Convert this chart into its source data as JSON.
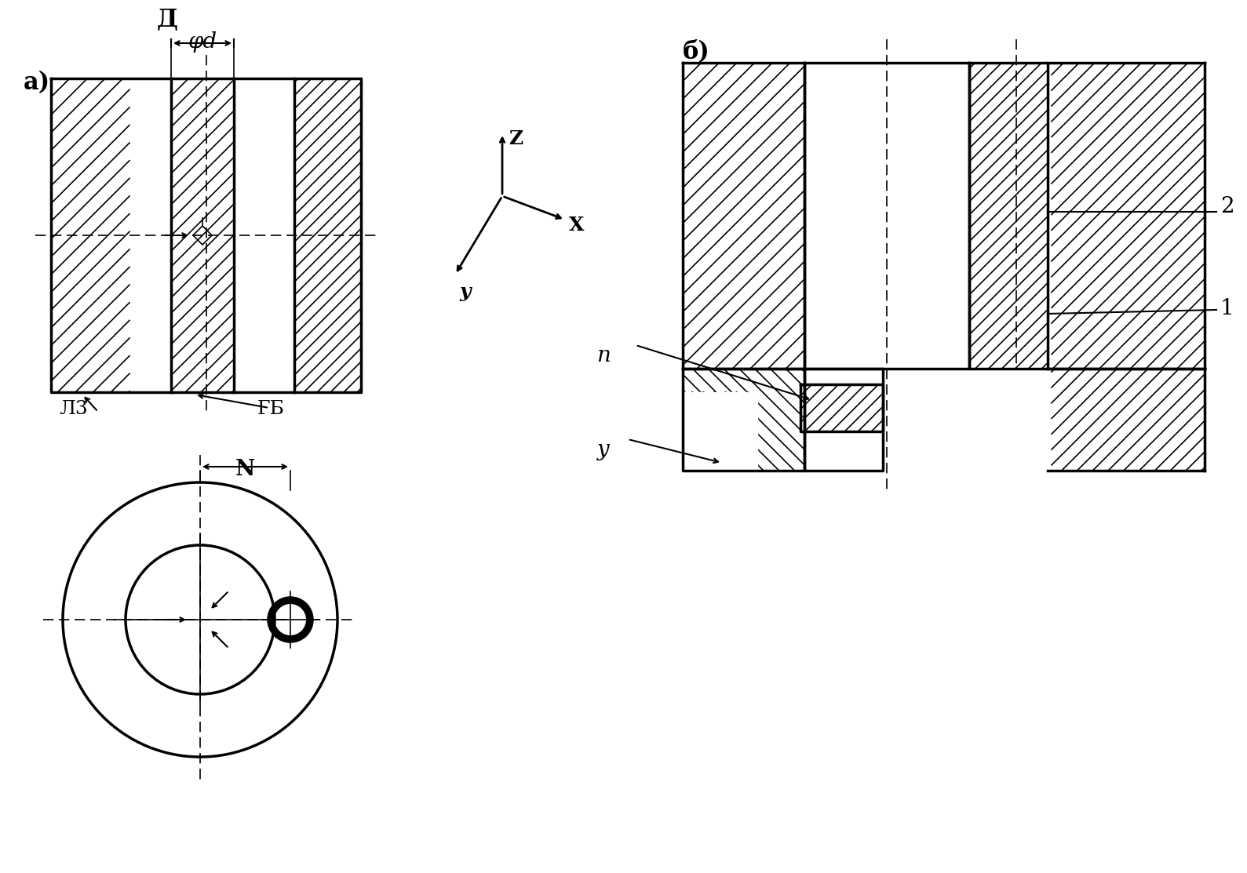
{
  "bg_color": "#ffffff",
  "line_color": "#000000",
  "hatch_color": "#000000",
  "fig_width": 15.89,
  "fig_height": 11.13,
  "label_a": "a)",
  "label_b": "б)",
  "phi_d_label": "φd",
  "label_3": "3",
  "label_GB": "ГБ",
  "label_N": "N",
  "label_P": "п",
  "label_U": "у",
  "label_1": "1",
  "label_2": "2",
  "label_Z": "Z",
  "label_X": "X",
  "label_Y": "y"
}
